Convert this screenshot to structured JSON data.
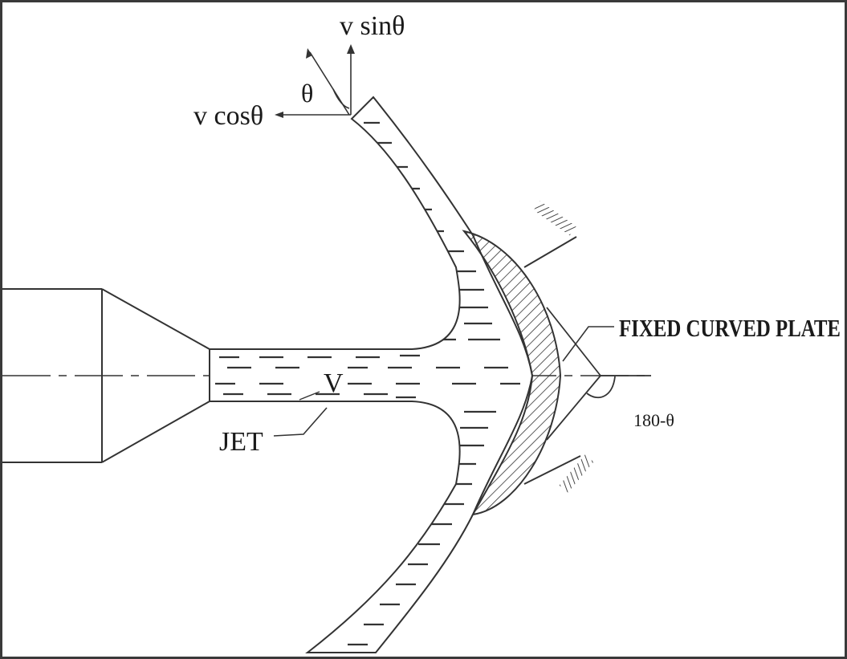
{
  "labels": {
    "v_sin": "v sinθ",
    "theta": "θ",
    "v_cos": "v cosθ",
    "fixed_curved_plate": "FIXED CURVED PLATE",
    "v": "V",
    "jet": "JET",
    "angle_180": "180-θ"
  },
  "colors": {
    "line": "#333333",
    "text": "#1a1a1a",
    "frame": "#3a3a3a",
    "background": "#ffffff"
  }
}
